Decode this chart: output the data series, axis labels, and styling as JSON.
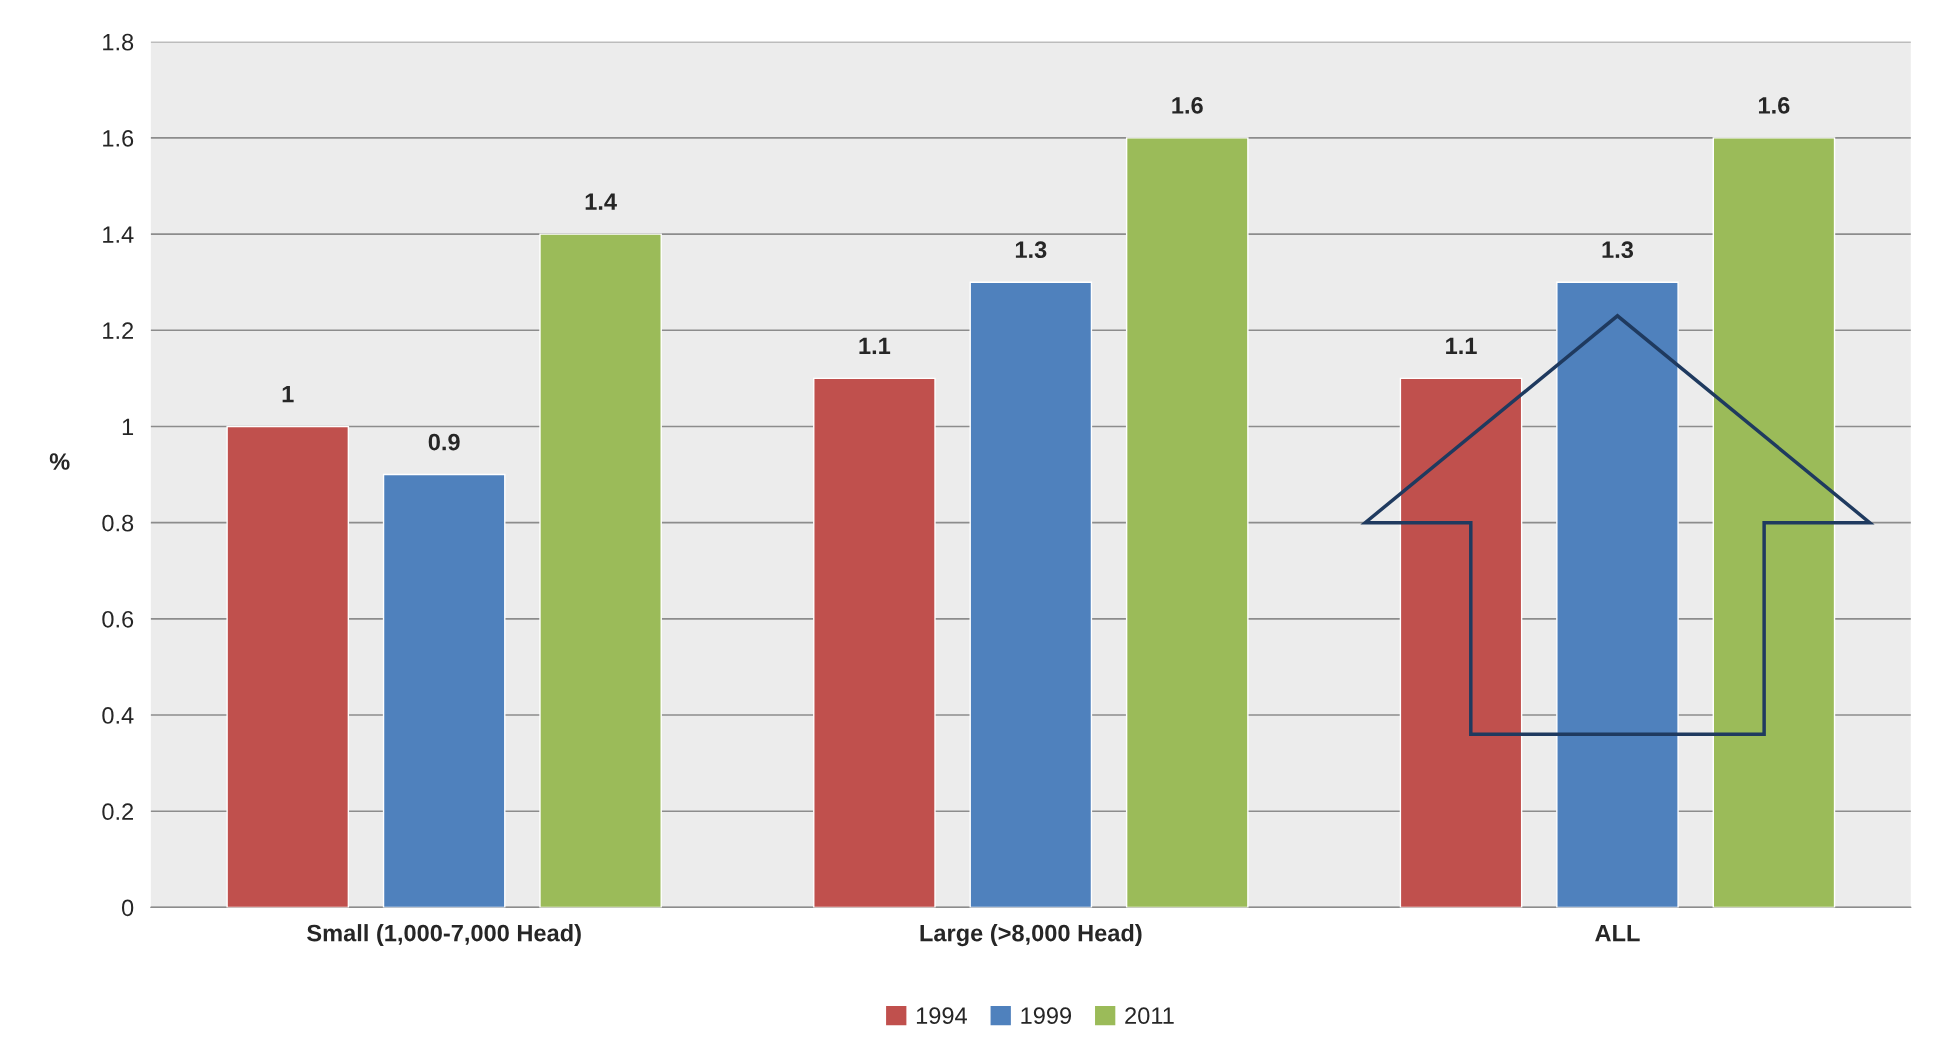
{
  "chart_data": {
    "type": "bar",
    "ylabel": "%",
    "categories": [
      "Small (1,000-7,000 Head)",
      "Large (>8,000 Head)",
      "ALL"
    ],
    "series": [
      {
        "name": "1994",
        "color": "#c0504d",
        "values": [
          1,
          1.1,
          1.1
        ]
      },
      {
        "name": "1999",
        "color": "#4f81bd",
        "values": [
          0.9,
          1.3,
          1.3
        ]
      },
      {
        "name": "2011",
        "color": "#9bbb59",
        "values": [
          1.4,
          1.6,
          1.6
        ]
      }
    ],
    "ylim": [
      0,
      1.8
    ],
    "yticks": [
      0,
      0.2,
      0.4,
      0.6,
      0.8,
      1,
      1.2,
      1.4,
      1.6,
      1.8
    ],
    "grid": "y",
    "legend": "bottom",
    "data_labels": true
  }
}
